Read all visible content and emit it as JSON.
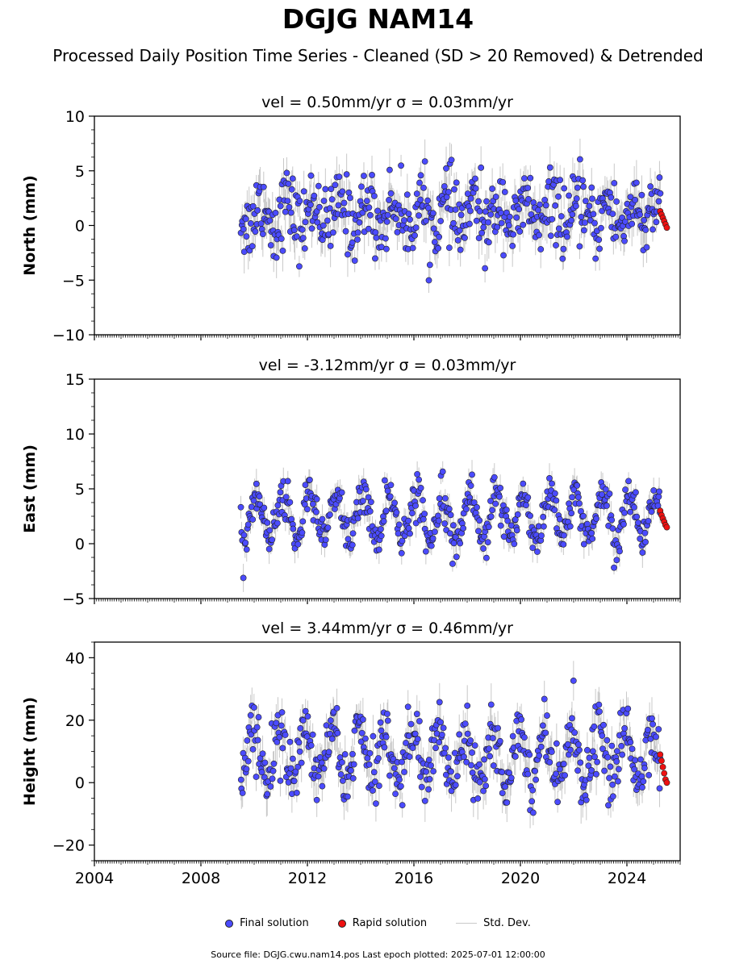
{
  "title": "DGJG NAM14",
  "subtitle": "Processed Daily Position Time Series - Cleaned (SD > 20 Removed) & Detrended",
  "legend": {
    "final": "Final solution",
    "rapid": "Rapid solution",
    "stddev": "Std. Dev."
  },
  "footer": "Source file: DGJG.cwu.nam14.pos  Last epoch plotted: 2025-07-01 12:00:00",
  "colors": {
    "final": "#4b4bff",
    "rapid": "#ee1111",
    "stddev": "#b0b0b0",
    "edge": "#222222"
  },
  "chart_data": [
    {
      "type": "scatter",
      "title": "vel = 0.50mm/yr   σ = 0.03mm/yr",
      "ylabel": "North (mm)",
      "xlim": [
        2004,
        2026
      ],
      "ylim": [
        -10,
        10
      ],
      "yticks": [
        -10,
        -5,
        0,
        5,
        10
      ],
      "xticks": [
        2004,
        2008,
        2012,
        2016,
        2020,
        2024
      ],
      "show_xticklabels": false,
      "final_range": [
        2009.5,
        2025.25
      ],
      "rapid_range": [
        2025.25,
        2025.5
      ],
      "mean": 1.0,
      "noise": 1.6,
      "seasonal_amp": 1.2,
      "sigma": 1.5,
      "rapid_values": [
        1.3,
        1.0,
        0.7,
        0.4,
        0.1,
        -0.2
      ]
    },
    {
      "type": "scatter",
      "title": "vel = -3.12mm/yr   σ = 0.03mm/yr",
      "ylabel": "East (mm)",
      "xlim": [
        2004,
        2026
      ],
      "ylim": [
        -5,
        15
      ],
      "yticks": [
        -5,
        0,
        5,
        10,
        15
      ],
      "xticks": [
        2004,
        2008,
        2012,
        2016,
        2020,
        2024
      ],
      "show_xticklabels": false,
      "final_range": [
        2009.5,
        2025.25
      ],
      "rapid_range": [
        2025.25,
        2025.5
      ],
      "mean": 2.5,
      "noise": 0.9,
      "seasonal_amp": 2.0,
      "sigma": 1.0,
      "rapid_values": [
        3.0,
        2.6,
        2.3,
        2.0,
        1.7,
        1.5
      ]
    },
    {
      "type": "scatter",
      "title": "vel = 3.44mm/yr   σ = 0.46mm/yr",
      "ylabel": "Height (mm)",
      "xlim": [
        2004,
        2026
      ],
      "ylim": [
        -25,
        45
      ],
      "yticks": [
        -20,
        0,
        20,
        40
      ],
      "xticks": [
        2004,
        2008,
        2012,
        2016,
        2020,
        2024
      ],
      "show_xticklabels": true,
      "final_range": [
        2009.5,
        2025.25
      ],
      "rapid_range": [
        2025.25,
        2025.5
      ],
      "mean": 9.0,
      "noise": 4.5,
      "seasonal_amp": 9.0,
      "sigma": 5.0,
      "rapid_values": [
        9.0,
        7.0,
        5.0,
        3.0,
        1.0,
        0.0
      ]
    }
  ]
}
